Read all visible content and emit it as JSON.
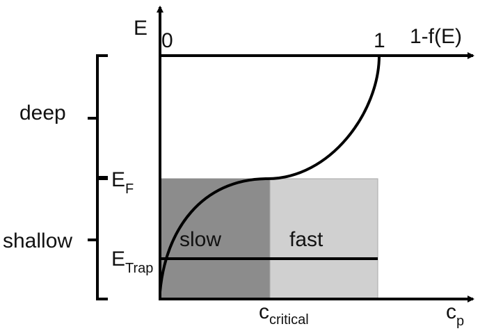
{
  "axes": {
    "vertical_label": "E",
    "horizontal_label": "1-f(E)",
    "occupation_start": "0",
    "occupation_end": "1",
    "bottom_label_main": "c",
    "bottom_label_sub": "p"
  },
  "levels": {
    "fermi_main": "E",
    "fermi_sub": "F",
    "trap_main": "E",
    "trap_sub": "Trap"
  },
  "regions": {
    "slow": "slow",
    "fast": "fast"
  },
  "critical": {
    "main": "c",
    "sub": "critical"
  },
  "brackets": {
    "deep": "deep",
    "shallow": "shallow"
  },
  "colors": {
    "slow_region": "#8c8c8c",
    "fast_region": "#d0d0d0",
    "lines": "#000000"
  }
}
